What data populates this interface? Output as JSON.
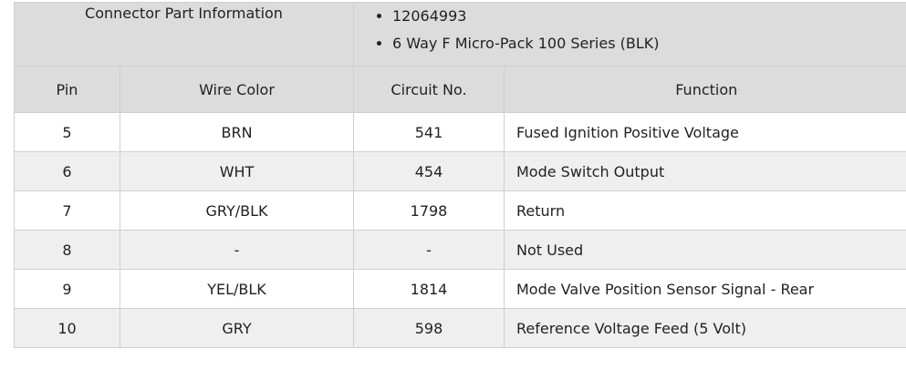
{
  "connector_info": {
    "label": "Connector Part Information",
    "items": [
      "12064993",
      "6 Way F Micro-Pack 100 Series (BLK)"
    ]
  },
  "columns": {
    "pin": "Pin",
    "wire_color": "Wire Color",
    "circuit": "Circuit No.",
    "function": "Function"
  },
  "rows": [
    {
      "pin": "5",
      "wire_color": "BRN",
      "circuit": "541",
      "function": "Fused Ignition Positive Voltage"
    },
    {
      "pin": "6",
      "wire_color": "WHT",
      "circuit": "454",
      "function": "Mode Switch Output"
    },
    {
      "pin": "7",
      "wire_color": "GRY/BLK",
      "circuit": "1798",
      "function": "Return"
    },
    {
      "pin": "8",
      "wire_color": "-",
      "circuit": "-",
      "function": "Not Used"
    },
    {
      "pin": "9",
      "wire_color": "YEL/BLK",
      "circuit": "1814",
      "function": "Mode Valve Position Sensor Signal - Rear"
    },
    {
      "pin": "10",
      "wire_color": "GRY",
      "circuit": "598",
      "function": "Reference Voltage Feed (5 Volt)"
    }
  ]
}
